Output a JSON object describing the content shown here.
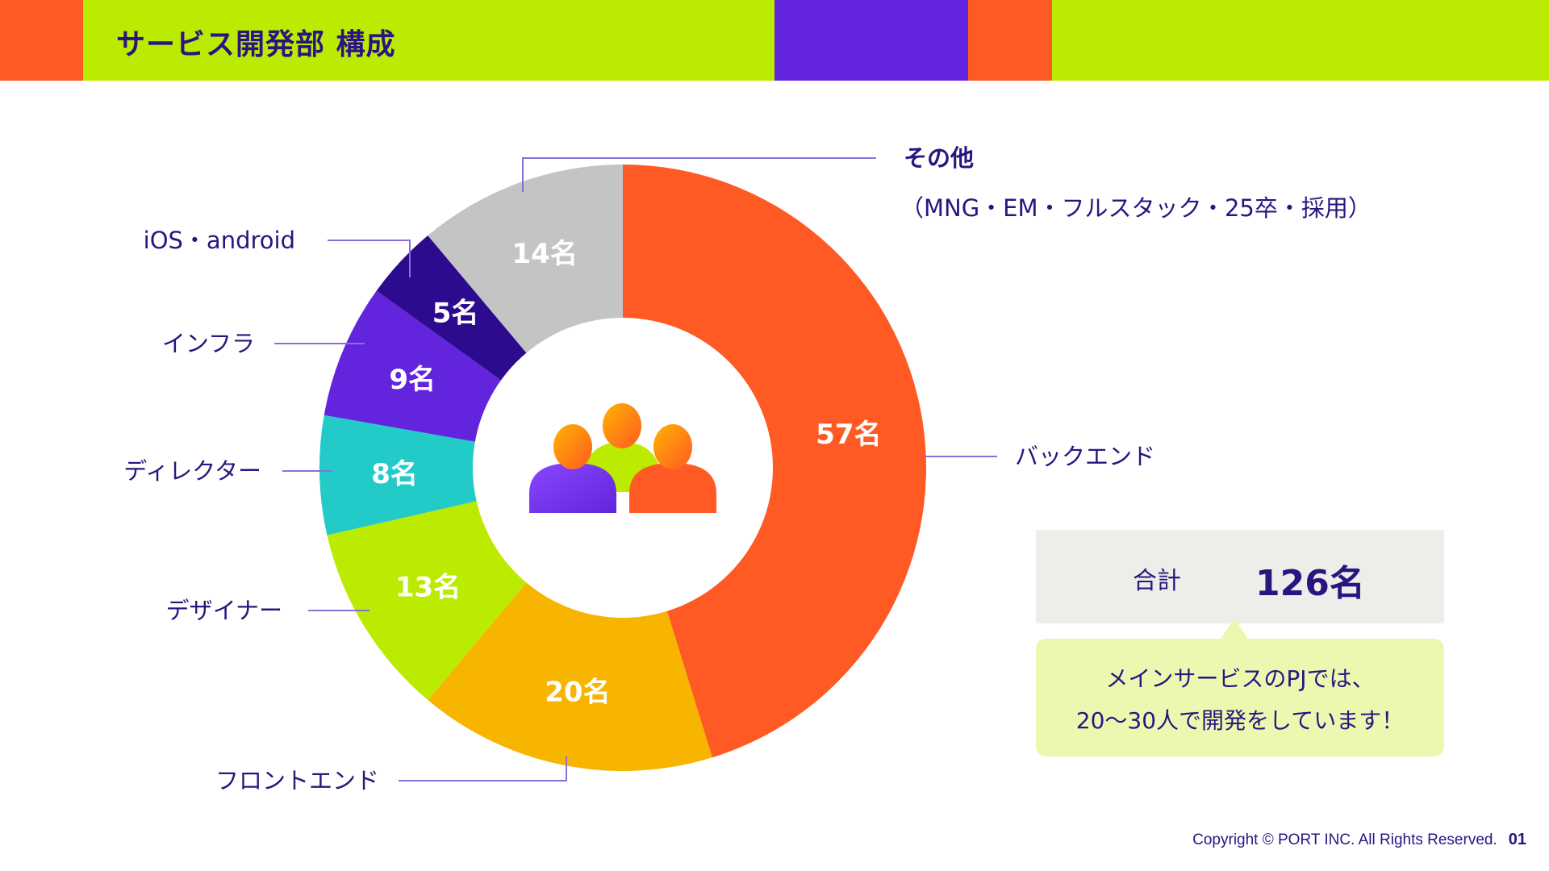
{
  "header": {
    "title": "サービス開発部 構成",
    "colors": {
      "orange": "#ff5a23",
      "lime": "#bbeb00",
      "purple": "#6224dc"
    }
  },
  "chart_data": {
    "type": "pie",
    "variant": "donut",
    "categories": [
      "バックエンド",
      "フロントエンド",
      "デザイナー",
      "ディレクター",
      "インフラ",
      "iOS・android",
      "その他"
    ],
    "values": [
      57,
      20,
      13,
      8,
      9,
      5,
      14
    ],
    "unit": "名",
    "slice_labels": [
      "57名",
      "20名",
      "13名",
      "8名",
      "9名",
      "5名",
      "14名"
    ],
    "colors": [
      "#ff5a23",
      "#f7b500",
      "#bbeb00",
      "#23cbc8",
      "#6224dc",
      "#2d0b8e",
      "#c4c4c4"
    ],
    "other_detail": "（MNG・EM・フルスタック・25卒・採用）",
    "center_icon": "people-group-icon"
  },
  "summary": {
    "total_label": "合計",
    "total_value": "126名",
    "note_line1": "メインサービスのPJでは、",
    "note_line2": "20〜30人で開発をしています！"
  },
  "footer": {
    "copyright": "Copyright © PORT INC. All Rights Reserved.",
    "page_number": "01"
  }
}
